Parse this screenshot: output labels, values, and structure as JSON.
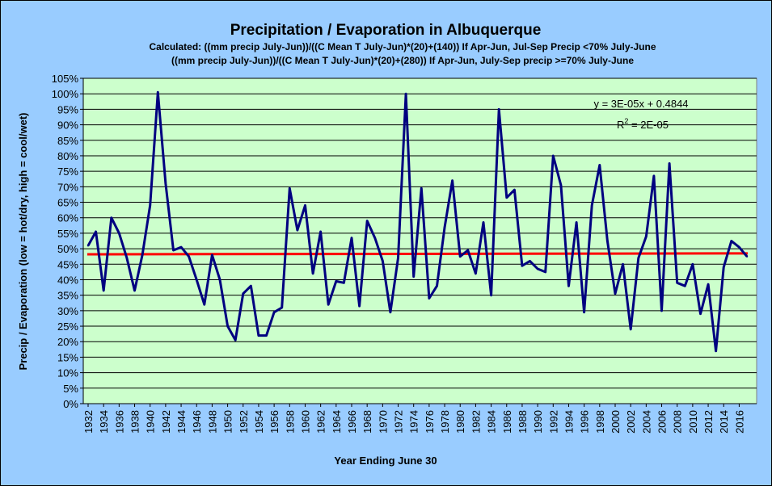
{
  "chart_data": {
    "type": "line",
    "title": "Precipitation / Evaporation in Albuquerque",
    "subtitle_lines": [
      "Calculated: ((mm precip July-Jun))/((C Mean T July-Jun)*(20)+(140))   If Apr-Jun, Jul-Sep Precip <70% July-June",
      "((mm precip July-Jun))/((C Mean T July-Jun)*(20)+(280))   If Apr-Jun, July-Sep precip >=70% July-June"
    ],
    "xlabel": "Year Ending June 30",
    "ylabel": "Precip / Evaporation (low = hot/dry, high = cool/wet)",
    "ylim": [
      0,
      105
    ],
    "y_tick_step": 5,
    "y_unit": "%",
    "xlim": [
      1932,
      2017
    ],
    "x_ticks": [
      1932,
      1934,
      1936,
      1938,
      1940,
      1942,
      1944,
      1946,
      1948,
      1950,
      1952,
      1954,
      1956,
      1958,
      1960,
      1962,
      1964,
      1966,
      1968,
      1970,
      1972,
      1974,
      1976,
      1978,
      1980,
      1982,
      1984,
      1986,
      1988,
      1990,
      1992,
      1994,
      1996,
      1998,
      2000,
      2002,
      2004,
      2006,
      2008,
      2010,
      2012,
      2014,
      2016
    ],
    "x_tick_labels": [
      "1932",
      "1934",
      "1936",
      "1938",
      "1940",
      "1942",
      "1944",
      "1946",
      "1948",
      "1950",
      "1952",
      "1954",
      "1956",
      "1958",
      "1960",
      "1962",
      "1964",
      "1966",
      "1968",
      "1970",
      "1972",
      "1974",
      "1976",
      "1978",
      "1980",
      "1982",
      "1984",
      "1986",
      "1988",
      "1990",
      "1992",
      "1994",
      "1996",
      "1998",
      "2000",
      "2002",
      "2004",
      "2006",
      "2008",
      "2010",
      "2012",
      "2014",
      "2016"
    ],
    "grid": true,
    "plot_background": "#ccffcc",
    "series": [
      {
        "color": "#000080",
        "x": [
          1932,
          1933,
          1934,
          1935,
          1936,
          1937,
          1938,
          1939,
          1940,
          1941,
          1942,
          1943,
          1944,
          1945,
          1946,
          1947,
          1948,
          1949,
          1950,
          1951,
          1952,
          1953,
          1954,
          1955,
          1956,
          1957,
          1958,
          1959,
          1960,
          1961,
          1962,
          1963,
          1964,
          1965,
          1966,
          1967,
          1968,
          1969,
          1970,
          1971,
          1972,
          1973,
          1974,
          1975,
          1976,
          1977,
          1978,
          1979,
          1980,
          1981,
          1982,
          1983,
          1984,
          1985,
          1986,
          1987,
          1988,
          1989,
          1990,
          1991,
          1992,
          1993,
          1994,
          1995,
          1996,
          1997,
          1998,
          1999,
          2000,
          2001,
          2002,
          2003,
          2004,
          2005,
          2006,
          2007,
          2008,
          2009,
          2010,
          2011,
          2012,
          2013,
          2014,
          2015,
          2016,
          2017
        ],
        "values": [
          51,
          55.5,
          36.5,
          60,
          55,
          47,
          36.5,
          48,
          64,
          100.5,
          71,
          49.5,
          50.5,
          47.5,
          40,
          32,
          48,
          40,
          25,
          20.5,
          35.5,
          38,
          22,
          22,
          29.5,
          31,
          69.5,
          56,
          64,
          42,
          55.5,
          32,
          39.5,
          39,
          53.5,
          31.5,
          59,
          53.5,
          46,
          29.5,
          47,
          100,
          41,
          69.5,
          34,
          38,
          57,
          72,
          47.5,
          49.5,
          42,
          58.5,
          35,
          95,
          66.5,
          69,
          44.5,
          46,
          43.5,
          42.5,
          80,
          70.5,
          38,
          58.5,
          29.5,
          64,
          77,
          52.5,
          35.5,
          45,
          24,
          47,
          54,
          73.5,
          30,
          77.5,
          39,
          38,
          45,
          29,
          38.5,
          17,
          44,
          52.5,
          50.5,
          47.5
        ]
      }
    ],
    "trendline": {
      "color": "#ff0000",
      "start_value": 48.2,
      "end_value": 48.5,
      "equation": "y = 3E-05x + 0.4844",
      "r2_prefix": "R",
      "r2_sup": "2",
      "r2_suffix": " = 2E-05"
    },
    "legend": "none"
  }
}
